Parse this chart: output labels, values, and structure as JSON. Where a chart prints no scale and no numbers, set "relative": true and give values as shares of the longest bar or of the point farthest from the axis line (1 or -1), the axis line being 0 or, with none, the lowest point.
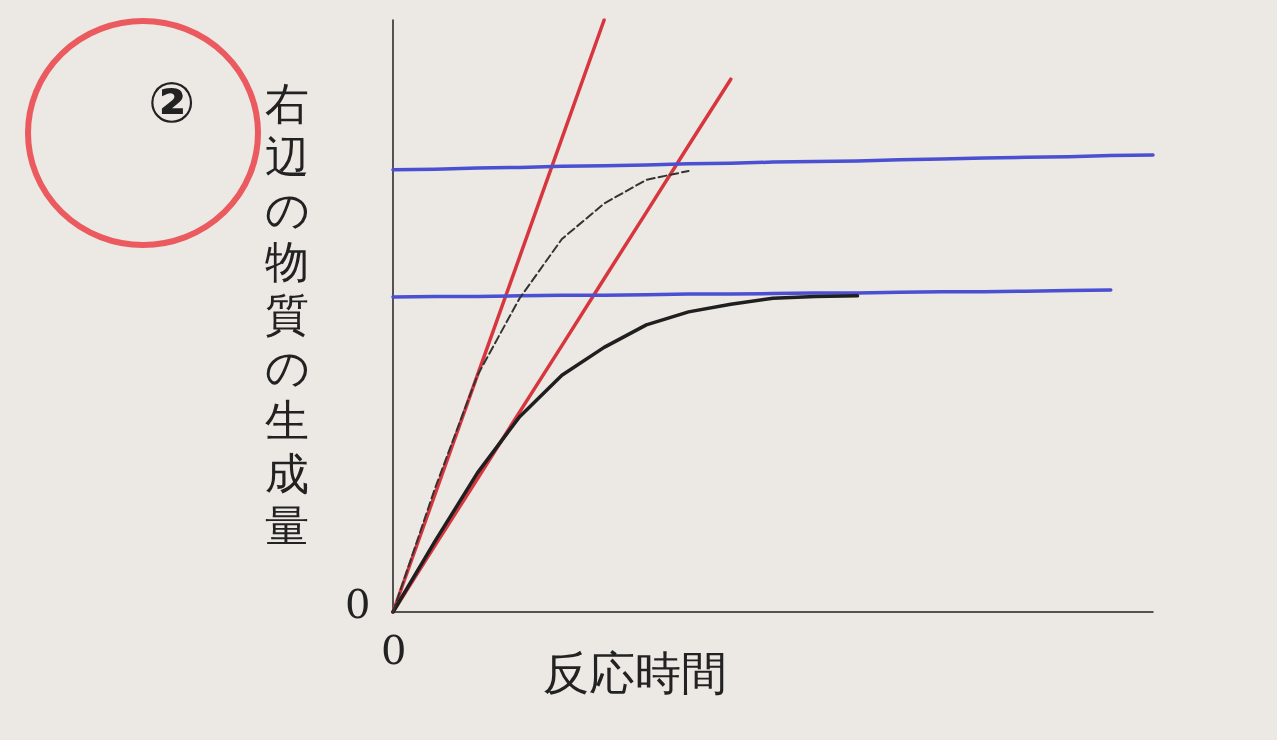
{
  "chart_data": {
    "type": "line",
    "title": "②",
    "xlabel": "反応時間",
    "ylabel": "右辺の物質の生成量",
    "relative": true,
    "grid": false,
    "marker": "none",
    "annotations": [
      "0",
      "0"
    ],
    "categories": [
      null,
      null,
      null,
      null,
      null,
      null,
      null,
      null,
      null,
      null,
      null,
      null,
      null,
      null,
      null,
      null,
      null,
      null,
      null
    ],
    "series": [
      {
        "color": "#d8363f",
        "values": [
          0,
          0.2,
          0.4,
          0.6,
          0.8,
          1.0,
          null,
          null,
          null,
          null,
          null,
          null,
          null,
          null,
          null,
          null,
          null,
          null,
          null
        ]
      },
      {
        "color": "#d8363f",
        "values": [
          0,
          0.113,
          0.225,
          0.338,
          0.45,
          0.563,
          0.675,
          0.788,
          0.9,
          null,
          null,
          null,
          null,
          null,
          null,
          null,
          null,
          null,
          null
        ]
      },
      {
        "color": "#4b4fd2",
        "values": [
          0.747,
          0.748,
          0.75,
          0.751,
          0.753,
          0.754,
          0.755,
          0.757,
          0.758,
          0.76,
          0.761,
          0.762,
          0.764,
          0.765,
          0.767,
          0.768,
          0.769,
          0.771,
          0.772
        ]
      },
      {
        "color": "#4b4fd2",
        "values": [
          0.532,
          0.533,
          0.533,
          0.534,
          0.535,
          0.535,
          0.536,
          0.537,
          0.537,
          0.538,
          0.539,
          0.539,
          0.54,
          0.541,
          0.541,
          0.542,
          0.543,
          0.544,
          null
        ]
      },
      {
        "color": "#1f1f1f",
        "values": [
          0,
          0.12,
          0.235,
          0.33,
          0.4,
          0.447,
          0.485,
          0.507,
          0.52,
          0.53,
          0.533,
          0.534,
          null,
          null,
          null,
          null,
          null,
          null,
          null
        ]
      },
      {
        "color": "#333333",
        "line_style": "dashed",
        "values": [
          0,
          0.21,
          0.4,
          0.53,
          0.63,
          0.69,
          0.73,
          0.745,
          null,
          null,
          null,
          null,
          null,
          null,
          null,
          null,
          null,
          null,
          null
        ]
      }
    ]
  }
}
